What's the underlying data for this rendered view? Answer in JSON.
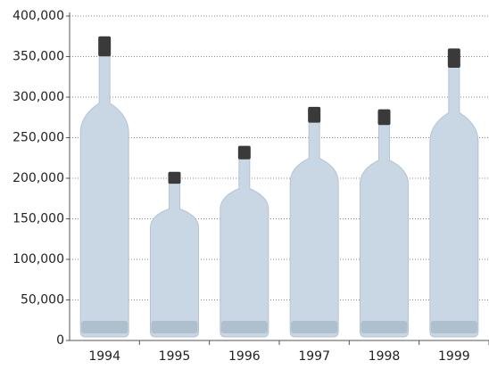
{
  "chart_data": {
    "type": "pictograph",
    "categories": [
      "1994",
      "1995",
      "1996",
      "1997",
      "1998",
      "1999"
    ],
    "values": [
      375000,
      208000,
      240000,
      288000,
      285000,
      360000
    ],
    "color": "#c9d7e4",
    "ylim": [
      0,
      400000
    ],
    "yticks": [
      0,
      {
        "value": 50000,
        "label": "50,000"
      },
      {
        "value": 100000,
        "label": "100,000"
      },
      {
        "value": 150000,
        "label": "150,000"
      },
      {
        "value": 200000,
        "label": "200,000"
      },
      {
        "value": 250000,
        "label": "250,000"
      },
      {
        "value": 300000,
        "label": "300,000"
      },
      {
        "value": 350000,
        "label": "350,000"
      },
      {
        "value": 400000,
        "label": "400,000"
      }
    ],
    "grid": true
  }
}
